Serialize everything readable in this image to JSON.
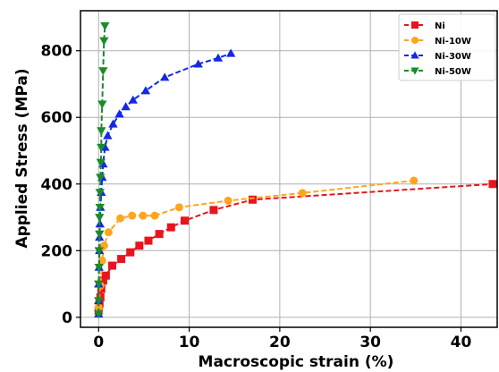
{
  "chart_data": {
    "type": "line",
    "title": "",
    "xlabel": "Macroscopic strain (%)",
    "ylabel": "Applied Stress (MPa)",
    "xlim": [
      -2,
      44
    ],
    "ylim": [
      -30,
      920
    ],
    "x_ticks": [
      0,
      10,
      20,
      30,
      40
    ],
    "y_ticks": [
      0,
      200,
      400,
      600,
      800
    ],
    "x_tick_labels": [
      "0",
      "10",
      "20",
      "30",
      "40"
    ],
    "y_tick_labels": [
      "0",
      "200",
      "400",
      "600",
      "800"
    ],
    "grid": true,
    "legend_position": "top-right",
    "series": [
      {
        "name": "Ni",
        "color": "#e8141e",
        "marker": "square",
        "points": [
          [
            0,
            20
          ],
          [
            0.1,
            40
          ],
          [
            0.2,
            60
          ],
          [
            0.3,
            85
          ],
          [
            0.5,
            110
          ],
          [
            0.8,
            125
          ],
          [
            1.5,
            155
          ],
          [
            2.5,
            175
          ],
          [
            3.5,
            195
          ],
          [
            4.5,
            215
          ],
          [
            5.5,
            230
          ],
          [
            6.7,
            250
          ],
          [
            8,
            270
          ],
          [
            9.5,
            290
          ],
          [
            12.7,
            322
          ],
          [
            17,
            353
          ],
          [
            43.5,
            400
          ]
        ]
      },
      {
        "name": "Ni-10W",
        "color": "#ffa51e",
        "marker": "circle",
        "points": [
          [
            0,
            30
          ],
          [
            0.2,
            95
          ],
          [
            0.4,
            170
          ],
          [
            0.6,
            215
          ],
          [
            1.1,
            255
          ],
          [
            2.4,
            297
          ],
          [
            3.7,
            305
          ],
          [
            4.9,
            305
          ],
          [
            6.2,
            305
          ],
          [
            8.9,
            330
          ],
          [
            14.3,
            350
          ],
          [
            22.5,
            373
          ],
          [
            34.8,
            410
          ]
        ]
      },
      {
        "name": "Ni-30W",
        "color": "#1428e6",
        "marker": "triangle-up",
        "points": [
          [
            0,
            10
          ],
          [
            0,
            50
          ],
          [
            0,
            100
          ],
          [
            0.05,
            150
          ],
          [
            0.1,
            200
          ],
          [
            0.1,
            240
          ],
          [
            0.15,
            280
          ],
          [
            0.2,
            330
          ],
          [
            0.3,
            375
          ],
          [
            0.4,
            420
          ],
          [
            0.5,
            460
          ],
          [
            0.7,
            510
          ],
          [
            1,
            545
          ],
          [
            1.6,
            580
          ],
          [
            2.3,
            610
          ],
          [
            3,
            632
          ],
          [
            3.8,
            652
          ],
          [
            5.2,
            680
          ],
          [
            7.3,
            720
          ],
          [
            11,
            760
          ],
          [
            13.2,
            778
          ],
          [
            14.6,
            792
          ]
        ]
      },
      {
        "name": "Ni-50W",
        "color": "#1a8c2a",
        "marker": "triangle-down",
        "points": [
          [
            0,
            10
          ],
          [
            0,
            50
          ],
          [
            0,
            100
          ],
          [
            0.05,
            150
          ],
          [
            0.05,
            200
          ],
          [
            0.1,
            250
          ],
          [
            0.1,
            300
          ],
          [
            0.15,
            330
          ],
          [
            0.15,
            375
          ],
          [
            0.2,
            420
          ],
          [
            0.25,
            465
          ],
          [
            0.3,
            510
          ],
          [
            0.3,
            560
          ],
          [
            0.4,
            640
          ],
          [
            0.5,
            740
          ],
          [
            0.6,
            830
          ],
          [
            0.7,
            875
          ]
        ]
      }
    ]
  }
}
